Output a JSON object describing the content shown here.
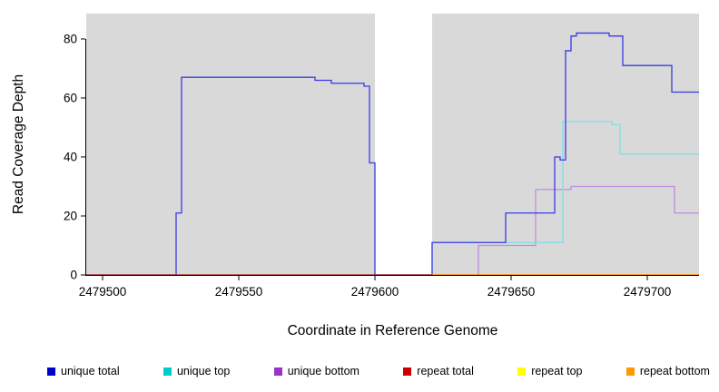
{
  "chart_data": {
    "type": "line",
    "subtype": "step-coverage",
    "title": "",
    "xlabel": "Coordinate in Reference Genome",
    "ylabel": "Read Coverage Depth",
    "x_domain": [
      2479494,
      2479719
    ],
    "y_domain": [
      0,
      88.6
    ],
    "grid": false,
    "legend_position": "bottom",
    "x_ticks": [
      {
        "value": 2479500,
        "label": "2479500"
      },
      {
        "value": 2479550,
        "label": "2479550"
      },
      {
        "value": 2479600,
        "label": "2479600"
      },
      {
        "value": 2479650,
        "label": "2479650"
      },
      {
        "value": 2479700,
        "label": "2479700"
      }
    ],
    "y_ticks": [
      {
        "value": 0,
        "label": "0"
      },
      {
        "value": 20,
        "label": "20"
      },
      {
        "value": 40,
        "label": "40"
      },
      {
        "value": 60,
        "label": "60"
      },
      {
        "value": 80,
        "label": "80"
      }
    ],
    "background": {
      "gap_color": "#FFFFFF",
      "bands": [
        {
          "from": 2479494,
          "to": 2479600,
          "color": "#D9D9D9"
        },
        {
          "from": 2479621,
          "to": 2479719,
          "color": "#D9D9D9"
        }
      ]
    },
    "series": [
      {
        "id": "repeat-top",
        "name": "repeat top",
        "color": "#FFEE00",
        "x_end": 2479719,
        "points": [
          [
            2479494,
            0
          ]
        ]
      },
      {
        "id": "unique-bottom",
        "name": "unique bottom",
        "color": "#BC8FDD",
        "x_end": 2479719,
        "points": [
          [
            2479494,
            0
          ],
          [
            2479638,
            10
          ],
          [
            2479659,
            29
          ],
          [
            2479672,
            30
          ],
          [
            2479710,
            21
          ]
        ]
      },
      {
        "id": "unique-top",
        "name": "unique top",
        "color": "#7FDFE8",
        "x_end": 2479719,
        "points": [
          [
            2479494,
            0
          ],
          [
            2479621,
            11
          ],
          [
            2479669,
            52
          ],
          [
            2479687,
            51
          ],
          [
            2479690,
            41
          ]
        ]
      },
      {
        "id": "unique-total",
        "name": "unique total",
        "color": "#3A3AE8",
        "x_end": 2479719,
        "points": [
          [
            2479494,
            0
          ],
          [
            2479527,
            21
          ],
          [
            2479529,
            67
          ],
          [
            2479578,
            66
          ],
          [
            2479584,
            65
          ],
          [
            2479596,
            64
          ],
          [
            2479598,
            38
          ],
          [
            2479600,
            0
          ],
          [
            2479621,
            11
          ],
          [
            2479648,
            21
          ],
          [
            2479666,
            40
          ],
          [
            2479668,
            39
          ],
          [
            2479670,
            76
          ],
          [
            2479672,
            81
          ],
          [
            2479674,
            82
          ],
          [
            2479686,
            81
          ],
          [
            2479691,
            71
          ],
          [
            2479709,
            62
          ]
        ]
      },
      {
        "id": "repeat-total",
        "name": "repeat total",
        "color": "#B22222",
        "x_end": 2479719,
        "points": [
          [
            2479494,
            0
          ]
        ]
      },
      {
        "id": "repeat-bottom",
        "name": "repeat bottom",
        "color": "#FF9900",
        "x_end": 2479719,
        "points": [
          [
            2479621,
            0
          ]
        ]
      }
    ],
    "legend": [
      {
        "label": "unique total",
        "color": "#0000CC"
      },
      {
        "label": "unique top",
        "color": "#00CCCC"
      },
      {
        "label": "unique bottom",
        "color": "#9933CC"
      },
      {
        "label": "repeat total",
        "color": "#CC0000"
      },
      {
        "label": "repeat top",
        "color": "#FFFF00"
      },
      {
        "label": "repeat bottom",
        "color": "#FF9900"
      }
    ]
  }
}
